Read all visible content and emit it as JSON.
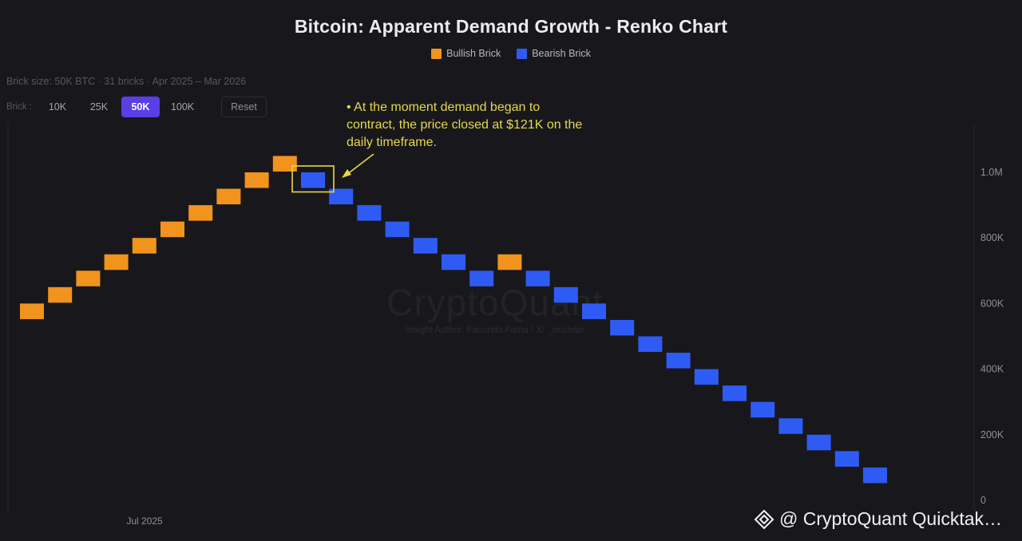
{
  "chart_data": {
    "type": "renko",
    "title": "Bitcoin: Apparent Demand Growth - Renko Chart",
    "subtitle": "Brick size: 50K BTC · 31 bricks · Apr 2025 – Mar 2026",
    "legend": [
      {
        "label": "Bullish Brick",
        "color": "#f2931d"
      },
      {
        "label": "Bearish Brick",
        "color": "#2f5bf5"
      }
    ],
    "brick_size": 50000,
    "y_ticks": [
      0,
      200000,
      400000,
      600000,
      800000,
      1000000
    ],
    "y_tick_labels": [
      "0",
      "200K",
      "400K",
      "600K",
      "800K",
      "1.0M"
    ],
    "ylim": [
      0,
      1100000
    ],
    "x_tick_labels": [
      "Jul 2025"
    ],
    "bricks": [
      {
        "direction": "up",
        "low": 550000,
        "high": 600000
      },
      {
        "direction": "up",
        "low": 600000,
        "high": 650000
      },
      {
        "direction": "up",
        "low": 650000,
        "high": 700000
      },
      {
        "direction": "up",
        "low": 700000,
        "high": 750000
      },
      {
        "direction": "up",
        "low": 750000,
        "high": 800000
      },
      {
        "direction": "up",
        "low": 800000,
        "high": 850000
      },
      {
        "direction": "up",
        "low": 850000,
        "high": 900000
      },
      {
        "direction": "up",
        "low": 900000,
        "high": 950000
      },
      {
        "direction": "up",
        "low": 950000,
        "high": 1000000
      },
      {
        "direction": "up",
        "low": 1000000,
        "high": 1050000
      },
      {
        "direction": "down",
        "low": 950000,
        "high": 1000000
      },
      {
        "direction": "down",
        "low": 900000,
        "high": 950000
      },
      {
        "direction": "down",
        "low": 850000,
        "high": 900000
      },
      {
        "direction": "down",
        "low": 800000,
        "high": 850000
      },
      {
        "direction": "down",
        "low": 750000,
        "high": 800000
      },
      {
        "direction": "down",
        "low": 700000,
        "high": 750000
      },
      {
        "direction": "down",
        "low": 650000,
        "high": 700000
      },
      {
        "direction": "up",
        "low": 700000,
        "high": 750000
      },
      {
        "direction": "down",
        "low": 650000,
        "high": 700000
      },
      {
        "direction": "down",
        "low": 600000,
        "high": 650000
      },
      {
        "direction": "down",
        "low": 550000,
        "high": 600000
      },
      {
        "direction": "down",
        "low": 500000,
        "high": 550000
      },
      {
        "direction": "down",
        "low": 450000,
        "high": 500000
      },
      {
        "direction": "down",
        "low": 400000,
        "high": 450000
      },
      {
        "direction": "down",
        "low": 350000,
        "high": 400000
      },
      {
        "direction": "down",
        "low": 300000,
        "high": 350000
      },
      {
        "direction": "down",
        "low": 250000,
        "high": 300000
      },
      {
        "direction": "down",
        "low": 200000,
        "high": 250000
      },
      {
        "direction": "down",
        "low": 150000,
        "high": 200000
      },
      {
        "direction": "down",
        "low": 100000,
        "high": 150000
      },
      {
        "direction": "down",
        "low": 50000,
        "high": 100000
      }
    ],
    "highlighted_brick_index": 10,
    "annotation": "• At the moment demand began to contract, the price closed at $121K on the daily timeframe.",
    "annotation_color": "#e6d84a"
  },
  "controls": {
    "label": "Brick :",
    "options": [
      "10K",
      "25K",
      "50K",
      "100K"
    ],
    "selected": "50K",
    "reset_label": "Reset",
    "accent": "#5b3fe6"
  },
  "watermark": {
    "brand": "CryptoQuant",
    "author": "Insight Author: Facundo Fama / X: _onchain"
  },
  "credit": {
    "text": "@ CryptoQuant Quicktak…",
    "icon": "binance-diamond-icon"
  }
}
